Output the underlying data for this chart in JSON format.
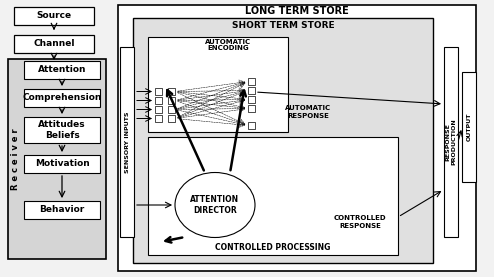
{
  "bg_color": "#f2f2f2",
  "white": "#ffffff",
  "black": "#000000",
  "light_gray": "#d8d8d8",
  "mid_gray": "#e8e8e8",
  "receiver_label": "R e c e i v e r",
  "long_term_label": "LONG TERM STORE",
  "short_term_label": "SHORT TERM STORE",
  "auto_encoding_label": "AUTOMATIC\nENCODING",
  "auto_response_label": "AUTOMATIC\nRESPONSE",
  "controlled_processing_label": "CONTROLLED PROCESSING",
  "controlled_response_label": "CONTROLLED\nRESPONSE",
  "attention_director_label": "ATTENTION\nDIRECTOR",
  "sensory_inputs_label": "SENSORY INPUTS",
  "response_production_label": "RESPONSE\nPRODUCTION",
  "output_label": "OUTPUT"
}
